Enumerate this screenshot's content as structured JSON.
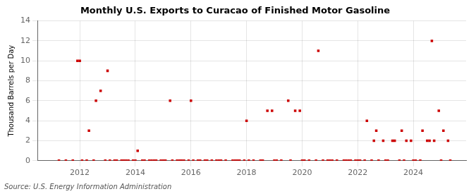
{
  "chart_data": {
    "type": "scatter",
    "title": "Monthly U.S. Exports to Curacao of Finished Motor Gasoline",
    "ylabel": "Thousand Barrels per Day",
    "annotation": "Source: U.S. Energy Information Administration",
    "color": "#cc0000",
    "marker": "square",
    "grid": true,
    "xlim": [
      2010.5,
      2025.9
    ],
    "xticks": [
      2012,
      2014,
      2016,
      2018,
      2020,
      2022,
      2024
    ],
    "ylim": [
      0,
      14
    ],
    "yticks": [
      0,
      2,
      4,
      6,
      8,
      10,
      12,
      14
    ],
    "x": [
      2011.25,
      2011.5,
      2011.75,
      2011.917,
      2012.0,
      2012.083,
      2012.25,
      2012.33,
      2012.5,
      2012.583,
      2012.75,
      2012.917,
      2013.0,
      2013.083,
      2013.25,
      2013.33,
      2013.5,
      2013.583,
      2013.667,
      2013.75,
      2013.917,
      2014.0,
      2014.083,
      2014.25,
      2014.33,
      2014.5,
      2014.583,
      2014.667,
      2014.75,
      2014.917,
      2015.0,
      2015.083,
      2015.25,
      2015.33,
      2015.5,
      2015.583,
      2015.667,
      2015.75,
      2015.917,
      2016.0,
      2016.083,
      2016.25,
      2016.33,
      2016.5,
      2016.583,
      2016.75,
      2016.917,
      2017.0,
      2017.083,
      2017.25,
      2017.5,
      2017.583,
      2017.667,
      2017.75,
      2017.917,
      2018.0,
      2018.083,
      2018.25,
      2018.5,
      2018.583,
      2018.75,
      2018.917,
      2019.0,
      2019.083,
      2019.25,
      2019.5,
      2019.583,
      2019.75,
      2019.917,
      2020.0,
      2020.083,
      2020.25,
      2020.5,
      2020.583,
      2020.75,
      2020.917,
      2021.0,
      2021.083,
      2021.25,
      2021.5,
      2021.583,
      2021.667,
      2021.75,
      2021.917,
      2022.0,
      2022.083,
      2022.25,
      2022.33,
      2022.5,
      2022.583,
      2022.667,
      2022.75,
      2022.917,
      2023.0,
      2023.083,
      2023.25,
      2023.33,
      2023.5,
      2023.583,
      2023.667,
      2023.75,
      2023.917,
      2024.0,
      2024.083,
      2024.25,
      2024.33,
      2024.5,
      2024.583,
      2024.667,
      2024.75,
      2024.917,
      2025.0,
      2025.083,
      2025.25,
      2025.33
    ],
    "values": [
      0,
      0,
      0,
      10,
      10,
      0,
      0,
      3,
      0,
      6,
      7,
      0,
      9,
      0,
      0,
      0,
      0,
      0,
      0,
      0,
      0,
      0,
      1,
      0,
      0,
      0,
      0,
      0,
      0,
      0,
      0,
      0,
      6,
      0,
      0,
      0,
      0,
      0,
      0,
      6,
      0,
      0,
      0,
      0,
      0,
      0,
      0,
      0,
      0,
      0,
      0,
      0,
      0,
      0,
      0,
      4,
      0,
      0,
      0,
      0,
      5,
      5,
      0,
      0,
      0,
      6,
      0,
      5,
      5,
      0,
      0,
      0,
      0,
      11,
      0,
      0,
      0,
      0,
      0,
      0,
      0,
      0,
      0,
      0,
      0,
      0,
      0,
      4,
      0,
      2,
      3,
      0,
      2,
      0,
      0,
      2,
      2,
      0,
      3,
      0,
      2,
      2,
      0,
      0,
      0,
      3,
      2,
      2,
      12,
      2,
      5,
      0,
      3,
      2,
      0
    ]
  }
}
